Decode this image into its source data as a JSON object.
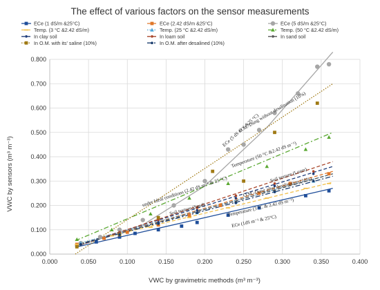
{
  "chart_data": {
    "type": "scatter",
    "title": "The effect of various factors on the sensor measurements",
    "xlabel": "VWC by gravimetric methods (m³ m⁻³)",
    "ylabel": "VWC by sensors (m³ m⁻³)",
    "xlim": [
      0.0,
      0.4
    ],
    "ylim": [
      0.0,
      0.8
    ],
    "x_ticks": [
      "0.000",
      "0.050",
      "0.100",
      "0.150",
      "0.200",
      "0.250",
      "0.300",
      "0.350",
      "0.400"
    ],
    "y_ticks": [
      "0.000",
      "0.100",
      "0.200",
      "0.300",
      "0.400",
      "0.500",
      "0.600",
      "0.700",
      "0.800"
    ],
    "grid": true,
    "legend_position": "top",
    "series": [
      {
        "name": "ECe (1 dS/m &25°C)",
        "color": "#1f4e9a",
        "marker": "square",
        "line": "solid",
        "x": [
          0.035,
          0.06,
          0.09,
          0.11,
          0.14,
          0.17,
          0.19,
          0.23,
          0.27,
          0.33,
          0.36
        ],
        "y": [
          0.035,
          0.05,
          0.07,
          0.085,
          0.1,
          0.115,
          0.13,
          0.16,
          0.19,
          0.24,
          0.26
        ],
        "fit": [
          [
            0.033,
            0.028
          ],
          [
            0.365,
            0.27
          ]
        ]
      },
      {
        "name": "ECe (2.42 dS/m &25°C)",
        "color": "#e0772a",
        "marker": "square",
        "line": "dashed",
        "x": [
          0.035,
          0.07,
          0.1,
          0.14,
          0.18,
          0.22,
          0.27,
          0.31,
          0.36
        ],
        "y": [
          0.04,
          0.065,
          0.09,
          0.12,
          0.16,
          0.2,
          0.25,
          0.29,
          0.33
        ],
        "fit": [
          [
            0.033,
            0.035
          ],
          [
            0.365,
            0.34
          ]
        ]
      },
      {
        "name": "ECe (5 dS/m &25°C)",
        "color": "#a6a6a6",
        "marker": "circle",
        "line": "solid",
        "x": [
          0.04,
          0.065,
          0.09,
          0.12,
          0.16,
          0.2,
          0.23,
          0.25,
          0.27,
          0.29,
          0.32,
          0.345,
          0.36
        ],
        "y": [
          0.045,
          0.07,
          0.1,
          0.14,
          0.2,
          0.3,
          0.43,
          0.45,
          0.51,
          0.58,
          0.66,
          0.77,
          0.78
        ],
        "fit": [
          [
            0.033,
            0.03
          ],
          [
            0.12,
            0.12
          ],
          [
            0.2,
            0.28
          ],
          [
            0.28,
            0.52
          ],
          [
            0.365,
            0.83
          ]
        ]
      },
      {
        "name": "Temp. (3 °C &2.42 dS/m)",
        "color": "#f2c14e",
        "marker": "dash",
        "line": "dashed",
        "x": [
          0.035,
          0.08,
          0.13,
          0.18,
          0.23,
          0.28,
          0.33,
          0.36
        ],
        "y": [
          0.04,
          0.075,
          0.11,
          0.15,
          0.19,
          0.23,
          0.27,
          0.29
        ],
        "fit": [
          [
            0.033,
            0.04
          ],
          [
            0.365,
            0.295
          ]
        ]
      },
      {
        "name": "Temp. (25 °C &2.42 dS/m)",
        "color": "#4aa3d8",
        "marker": "triangle",
        "line": "dotted",
        "x": [
          0.04,
          0.09,
          0.14,
          0.19,
          0.24,
          0.29,
          0.34
        ],
        "y": [
          0.045,
          0.085,
          0.13,
          0.17,
          0.215,
          0.26,
          0.3
        ],
        "fit": [
          [
            0.033,
            0.04
          ],
          [
            0.365,
            0.33
          ]
        ]
      },
      {
        "name": "Temp. (50 °C &2.42 dS/m)",
        "color": "#5aa832",
        "marker": "triangle",
        "line": "dashdot",
        "x": [
          0.035,
          0.08,
          0.13,
          0.18,
          0.23,
          0.28,
          0.33,
          0.36
        ],
        "y": [
          0.06,
          0.1,
          0.165,
          0.23,
          0.29,
          0.36,
          0.43,
          0.48
        ],
        "fit": [
          [
            0.033,
            0.055
          ],
          [
            0.365,
            0.5
          ]
        ]
      },
      {
        "name": "In clay soil",
        "color": "#1f3d7a",
        "marker": "dot",
        "line": "dashed",
        "x": [
          0.04,
          0.09,
          0.14,
          0.19,
          0.24,
          0.29,
          0.34
        ],
        "y": [
          0.04,
          0.085,
          0.13,
          0.18,
          0.23,
          0.28,
          0.33
        ],
        "fit": [
          [
            0.033,
            0.035
          ],
          [
            0.365,
            0.36
          ]
        ]
      },
      {
        "name": "In loam soil",
        "color": "#a8452a",
        "marker": "dot",
        "line": "dashed",
        "x": [
          0.04,
          0.09,
          0.14,
          0.19,
          0.24,
          0.29,
          0.34
        ],
        "y": [
          0.04,
          0.09,
          0.14,
          0.19,
          0.24,
          0.29,
          0.34
        ],
        "fit": [
          [
            0.033,
            0.03
          ],
          [
            0.365,
            0.38
          ]
        ]
      },
      {
        "name": "In sand soil",
        "color": "#555555",
        "marker": "dot",
        "line": "dashed",
        "x": [
          0.04,
          0.09,
          0.14,
          0.19,
          0.24,
          0.29,
          0.34
        ],
        "y": [
          0.04,
          0.085,
          0.125,
          0.17,
          0.215,
          0.26,
          0.3
        ],
        "fit": [
          [
            0.033,
            0.035
          ],
          [
            0.365,
            0.33
          ]
        ]
      },
      {
        "name": "In O.M. with its' saline (10%)",
        "color": "#a07a15",
        "marker": "square",
        "line": "dotted",
        "x": [
          0.035,
          0.09,
          0.14,
          0.21,
          0.25,
          0.29,
          0.345
        ],
        "y": [
          0.03,
          0.08,
          0.15,
          0.34,
          0.3,
          0.5,
          0.62
        ],
        "fit": [
          [
            0.033,
            0.0
          ],
          [
            0.365,
            0.7
          ]
        ]
      },
      {
        "name": "In O.M. after desalined (10%)",
        "color": "#1a3c6e",
        "marker": "dot",
        "line": "dashdot",
        "x": [
          0.04,
          0.09,
          0.14,
          0.19,
          0.24,
          0.29,
          0.34
        ],
        "y": [
          0.04,
          0.08,
          0.125,
          0.17,
          0.21,
          0.255,
          0.3
        ],
        "fit": [
          [
            0.033,
            0.035
          ],
          [
            0.365,
            0.32
          ]
        ]
      }
    ],
    "annotations": [
      {
        "id": "ann-ece5",
        "text": "ECe (5 dS m⁻¹ &25 °C)",
        "x": 0.225,
        "y": 0.44,
        "angle": -42,
        "size": 9,
        "color": "#1f4e9a"
      },
      {
        "id": "ann-om-saline",
        "text": "O.M.-Dung without desalination (10%)",
        "x": 0.245,
        "y": 0.5,
        "angle": -30,
        "size": 6.5,
        "color": "#5a4a20"
      },
      {
        "id": "ann-temp50",
        "text": "Temperature (50 °C &2.42 dS m⁻¹)",
        "x": 0.235,
        "y": 0.355,
        "angle": -20,
        "size": 7,
        "color": "#1f4e9a"
      },
      {
        "id": "ann-loam",
        "text": "Soil texture (Loam)",
        "x": 0.285,
        "y": 0.295,
        "angle": -18,
        "size": 6.5,
        "color": "#222222"
      },
      {
        "id": "ann-ideal",
        "text": "under Ideal conditions (2.42 dS m⁻¹ & 25 °C)",
        "x": 0.12,
        "y": 0.195,
        "angle": -18,
        "size": 6.5,
        "color": "#222222"
      },
      {
        "id": "ann-om-desal",
        "text": "O.M.-Dung after desalination (10%)",
        "x": 0.25,
        "y": 0.235,
        "angle": -14,
        "size": 6.5,
        "color": "#222222"
      },
      {
        "id": "ann-sand",
        "text": "Soil texture (Sand)",
        "x": 0.155,
        "y": 0.16,
        "angle": -15,
        "size": 6.5,
        "color": "#222222"
      },
      {
        "id": "ann-temp3",
        "text": "Temperature (3 °C & 2.42 dS m⁻¹)",
        "x": 0.23,
        "y": 0.155,
        "angle": -13,
        "size": 6.5,
        "color": "#222222"
      },
      {
        "id": "ann-ece1",
        "text": "ECe (1dS m⁻¹ & 25°C)",
        "x": 0.235,
        "y": 0.11,
        "angle": -12,
        "size": 6.5,
        "color": "#1f4e9a"
      }
    ]
  }
}
